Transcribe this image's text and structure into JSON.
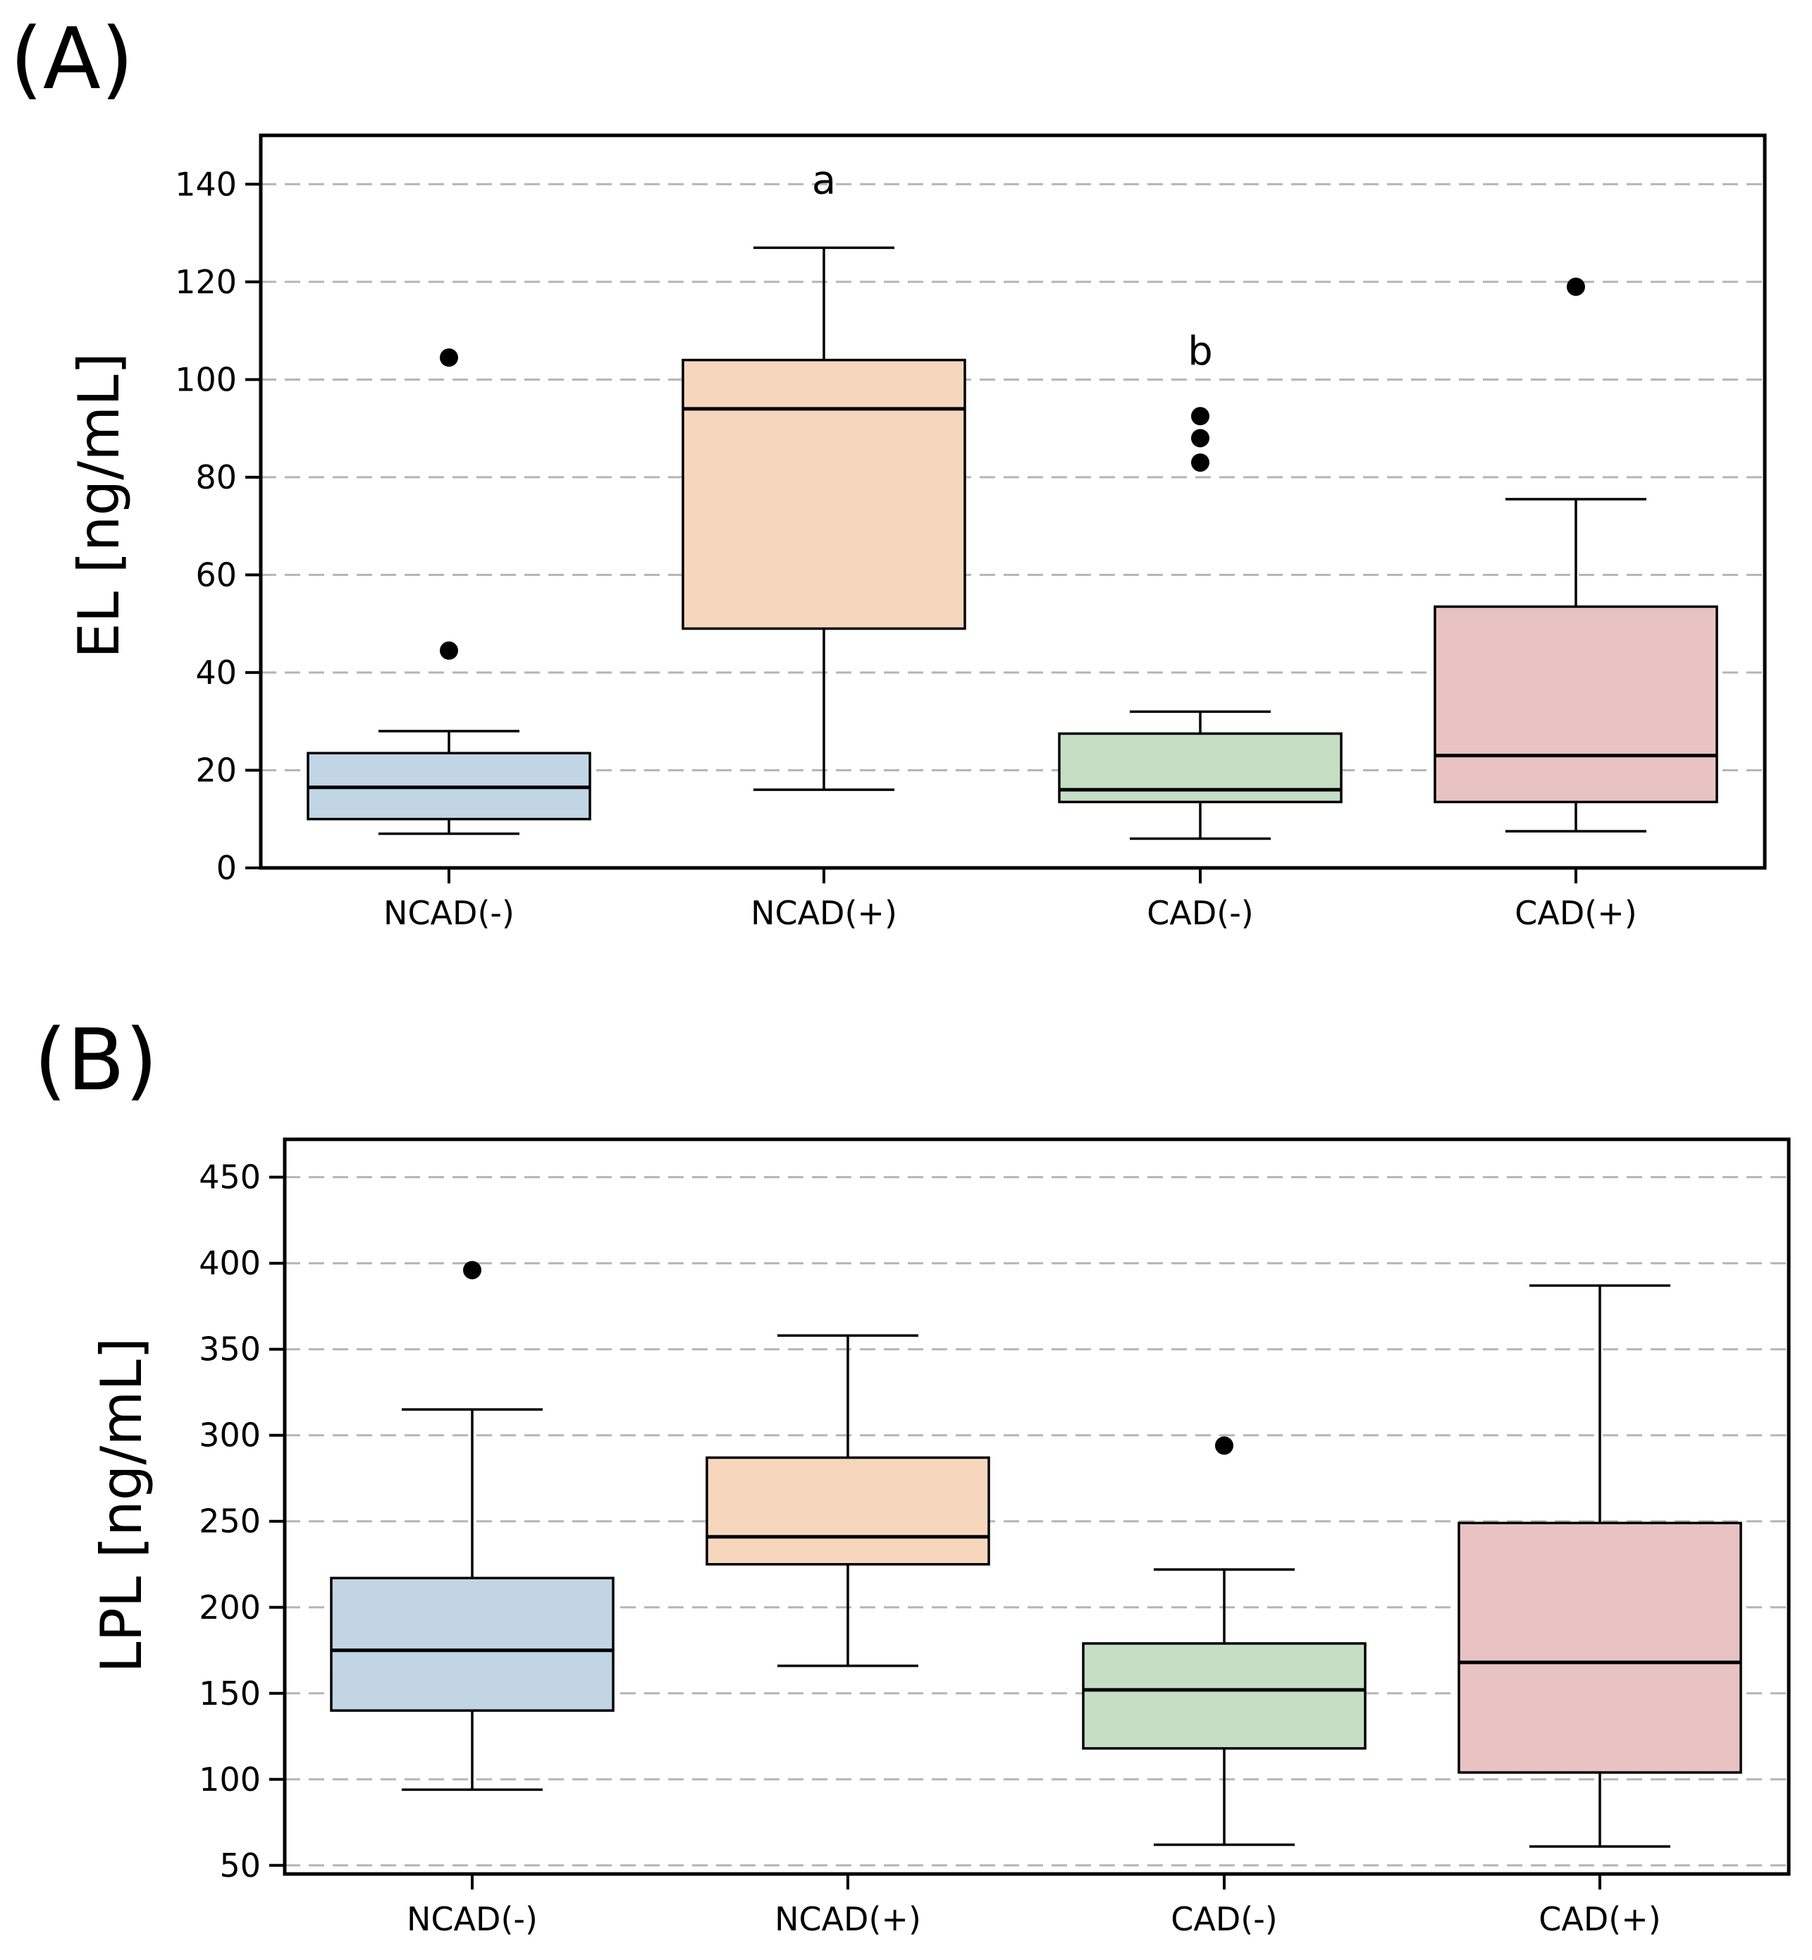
{
  "chart_data": [
    {
      "type": "box",
      "panel_label": "(A)",
      "ylabel": "EL [ng/mL]",
      "ylim": [
        0,
        150
      ],
      "yticks": [
        0,
        20,
        40,
        60,
        80,
        100,
        120,
        140
      ],
      "ytick_labels": [
        "0",
        "20",
        "40",
        "60",
        "80",
        "100",
        "120",
        "140"
      ],
      "grid": "horizontal dashed",
      "categories": [
        "NCAD(-)",
        "NCAD(+)",
        "CAD(-)",
        "CAD(+)"
      ],
      "colors": [
        "#c1d5e4",
        "#f6d7be",
        "#c5dfc5",
        "#e9c3c3"
      ],
      "boxes": [
        {
          "whisker_low": 7,
          "q1": 10,
          "median": 16.5,
          "q3": 23.5,
          "whisker_high": 28,
          "outliers": [
            104.5,
            44.5
          ]
        },
        {
          "whisker_low": 16,
          "q1": 49,
          "median": 94,
          "q3": 104,
          "whisker_high": 127,
          "outliers": []
        },
        {
          "whisker_low": 6,
          "q1": 13.5,
          "median": 16,
          "q3": 27.5,
          "whisker_high": 32,
          "outliers": [
            92.5,
            88,
            83
          ]
        },
        {
          "whisker_low": 7.5,
          "q1": 13.5,
          "median": 23,
          "q3": 53.5,
          "whisker_high": 75.5,
          "outliers": [
            119
          ]
        }
      ],
      "annotations": [
        {
          "text": "a",
          "category": "NCAD(+)",
          "y": 141
        },
        {
          "text": "b",
          "category": "CAD(-)",
          "y": 106
        }
      ]
    },
    {
      "type": "box",
      "panel_label": "(B)",
      "ylabel": "LPL [ng/mL]",
      "ylim": [
        45,
        472
      ],
      "yticks": [
        50,
        100,
        150,
        200,
        250,
        300,
        350,
        400,
        450
      ],
      "ytick_labels": [
        "50",
        "100",
        "150",
        "200",
        "250",
        "300",
        "350",
        "400",
        "450"
      ],
      "grid": "horizontal dashed",
      "categories": [
        "NCAD(-)",
        "NCAD(+)",
        "CAD(-)",
        "CAD(+)"
      ],
      "colors": [
        "#c1d5e4",
        "#f6d7be",
        "#c5dfc5",
        "#e9c3c3"
      ],
      "boxes": [
        {
          "whisker_low": 94,
          "q1": 140,
          "median": 175,
          "q3": 217,
          "whisker_high": 315,
          "outliers": [
            396
          ]
        },
        {
          "whisker_low": 166,
          "q1": 225,
          "median": 241,
          "q3": 287,
          "whisker_high": 358,
          "outliers": []
        },
        {
          "whisker_low": 62,
          "q1": 118,
          "median": 152,
          "q3": 179,
          "whisker_high": 222,
          "outliers": [
            294
          ]
        },
        {
          "whisker_low": 61,
          "q1": 104,
          "median": 168,
          "q3": 249,
          "whisker_high": 387,
          "outliers": []
        }
      ],
      "annotations": []
    }
  ]
}
